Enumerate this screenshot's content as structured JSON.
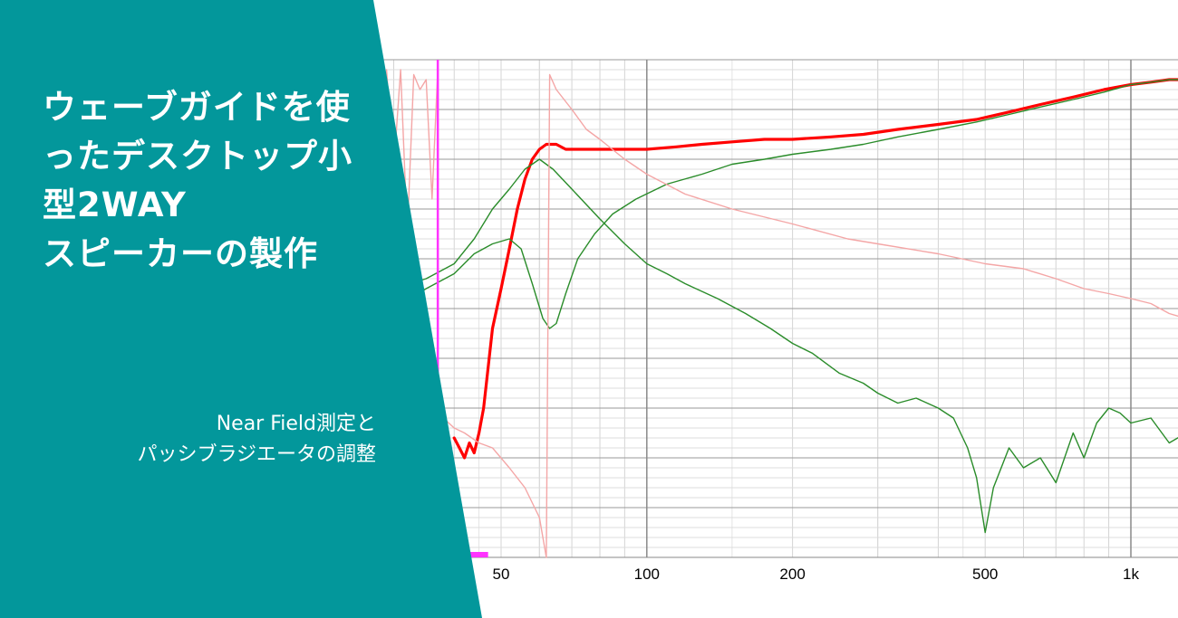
{
  "banner": {
    "title_lines": [
      "ウェーブガイドを使",
      "ったデスクトップ小",
      "型2WAY",
      "スピーカーの製作"
    ],
    "subtitle_lines": [
      "Near Field測定と",
      "パッシブラジエータの調整"
    ],
    "background_color": "#03979B",
    "text_color": "#FFFFFF"
  },
  "chart_data": {
    "type": "line",
    "x_scale": "log",
    "xlim": [
      20,
      1500
    ],
    "x_ticks": [
      {
        "value": 50,
        "label": "50"
      },
      {
        "value": 100,
        "label": "100"
      },
      {
        "value": 200,
        "label": "200"
      },
      {
        "value": 500,
        "label": "500"
      },
      {
        "value": 1000,
        "label": "1k"
      }
    ],
    "ylim": [
      0,
      100
    ],
    "grid": true,
    "series": [
      {
        "color": "#FF0000",
        "style": "thick",
        "points": [
          [
            40,
            24
          ],
          [
            41,
            22
          ],
          [
            42,
            20
          ],
          [
            43,
            23
          ],
          [
            44,
            21
          ],
          [
            45,
            25
          ],
          [
            46,
            30
          ],
          [
            47,
            38
          ],
          [
            48,
            46
          ],
          [
            50,
            54
          ],
          [
            52,
            62
          ],
          [
            54,
            70
          ],
          [
            56,
            76
          ],
          [
            58,
            80
          ],
          [
            60,
            82
          ],
          [
            62,
            83
          ],
          [
            65,
            83
          ],
          [
            68,
            82
          ],
          [
            72,
            82
          ],
          [
            80,
            82
          ],
          [
            90,
            82
          ],
          [
            100,
            82
          ],
          [
            115,
            82.5
          ],
          [
            130,
            83
          ],
          [
            150,
            83.5
          ],
          [
            175,
            84
          ],
          [
            200,
            84
          ],
          [
            240,
            84.5
          ],
          [
            280,
            85
          ],
          [
            330,
            86
          ],
          [
            400,
            87
          ],
          [
            480,
            88
          ],
          [
            560,
            89.5
          ],
          [
            650,
            91
          ],
          [
            760,
            92.5
          ],
          [
            880,
            94
          ],
          [
            1000,
            95
          ],
          [
            1100,
            95.5
          ],
          [
            1200,
            96
          ],
          [
            1300,
            96
          ],
          [
            1400,
            96
          ],
          [
            1500,
            96
          ]
        ]
      },
      {
        "color": "#2A8C2A",
        "style": "thin",
        "points": [
          [
            20,
            50
          ],
          [
            25,
            52
          ],
          [
            30,
            54
          ],
          [
            35,
            56
          ],
          [
            40,
            59
          ],
          [
            44,
            64
          ],
          [
            48,
            70
          ],
          [
            52,
            74
          ],
          [
            56,
            78
          ],
          [
            60,
            80
          ],
          [
            64,
            78
          ],
          [
            70,
            74
          ],
          [
            80,
            68
          ],
          [
            90,
            63
          ],
          [
            100,
            59
          ],
          [
            110,
            57
          ],
          [
            120,
            55
          ],
          [
            140,
            52
          ],
          [
            160,
            49
          ],
          [
            180,
            46
          ],
          [
            200,
            43
          ],
          [
            220,
            41
          ],
          [
            250,
            37
          ],
          [
            280,
            35
          ],
          [
            300,
            33
          ],
          [
            330,
            31
          ],
          [
            360,
            32
          ],
          [
            400,
            30
          ],
          [
            430,
            28
          ],
          [
            460,
            22
          ],
          [
            480,
            16
          ],
          [
            500,
            5
          ],
          [
            520,
            14
          ],
          [
            560,
            22
          ],
          [
            600,
            18
          ],
          [
            650,
            20
          ],
          [
            700,
            15
          ],
          [
            760,
            25
          ],
          [
            800,
            20
          ],
          [
            850,
            27
          ],
          [
            900,
            30
          ],
          [
            950,
            29
          ],
          [
            1000,
            27
          ],
          [
            1100,
            28
          ],
          [
            1200,
            23
          ],
          [
            1300,
            25
          ],
          [
            1400,
            27
          ],
          [
            1500,
            24
          ]
        ]
      },
      {
        "color": "#2A8C2A",
        "style": "thin",
        "points": [
          [
            20,
            45
          ],
          [
            25,
            47
          ],
          [
            30,
            50
          ],
          [
            35,
            54
          ],
          [
            40,
            57
          ],
          [
            44,
            61
          ],
          [
            48,
            63
          ],
          [
            52,
            64
          ],
          [
            55,
            62
          ],
          [
            58,
            55
          ],
          [
            61,
            48
          ],
          [
            63,
            46
          ],
          [
            65,
            47
          ],
          [
            68,
            53
          ],
          [
            72,
            60
          ],
          [
            78,
            65
          ],
          [
            85,
            69
          ],
          [
            95,
            72
          ],
          [
            110,
            75
          ],
          [
            130,
            77
          ],
          [
            150,
            79
          ],
          [
            175,
            80
          ],
          [
            200,
            81
          ],
          [
            240,
            82
          ],
          [
            280,
            83
          ],
          [
            330,
            84.5
          ],
          [
            400,
            86
          ],
          [
            480,
            87.5
          ],
          [
            560,
            89
          ],
          [
            650,
            90.5
          ],
          [
            760,
            92
          ],
          [
            880,
            93.5
          ],
          [
            1000,
            95
          ],
          [
            1100,
            95.5
          ],
          [
            1200,
            96
          ],
          [
            1300,
            96
          ],
          [
            1400,
            96
          ],
          [
            1500,
            96
          ]
        ]
      },
      {
        "color": "#F4A6A6",
        "style": "thin",
        "points": [
          [
            38,
            28
          ],
          [
            40,
            26
          ],
          [
            42,
            25
          ],
          [
            45,
            23
          ],
          [
            48,
            22
          ],
          [
            52,
            18
          ],
          [
            56,
            14
          ],
          [
            60,
            8
          ],
          [
            62,
            0
          ]
        ]
      },
      {
        "color": "#F4A6A6",
        "style": "thin",
        "points": [
          [
            62,
            0
          ],
          [
            63,
            97
          ],
          [
            65,
            94
          ],
          [
            70,
            90
          ],
          [
            75,
            86
          ],
          [
            80,
            84
          ],
          [
            90,
            80
          ],
          [
            100,
            77
          ],
          [
            120,
            73
          ],
          [
            150,
            70
          ],
          [
            200,
            67
          ],
          [
            260,
            64
          ],
          [
            300,
            63
          ],
          [
            400,
            61
          ],
          [
            500,
            59
          ],
          [
            600,
            58
          ],
          [
            700,
            56
          ],
          [
            800,
            54
          ],
          [
            900,
            53
          ],
          [
            1000,
            52
          ],
          [
            1100,
            51
          ],
          [
            1200,
            49
          ],
          [
            1300,
            48
          ],
          [
            1500,
            46
          ]
        ]
      },
      {
        "color": "#F4A6A6",
        "style": "thin",
        "points": [
          [
            25,
            98
          ],
          [
            26,
            70
          ],
          [
            27,
            98
          ],
          [
            28,
            60
          ],
          [
            29,
            98
          ],
          [
            30,
            78
          ],
          [
            31,
            98
          ],
          [
            32,
            65
          ],
          [
            33,
            97
          ],
          [
            34,
            94
          ],
          [
            35,
            96
          ],
          [
            36,
            72
          ],
          [
            37,
            98
          ]
        ]
      }
    ],
    "markers": [
      {
        "color": "#FF33FF",
        "x": 37,
        "kind": "vertical-line"
      },
      {
        "color": "#FF33FF",
        "x_range": [
          40,
          47
        ],
        "kind": "base-bar"
      }
    ]
  }
}
